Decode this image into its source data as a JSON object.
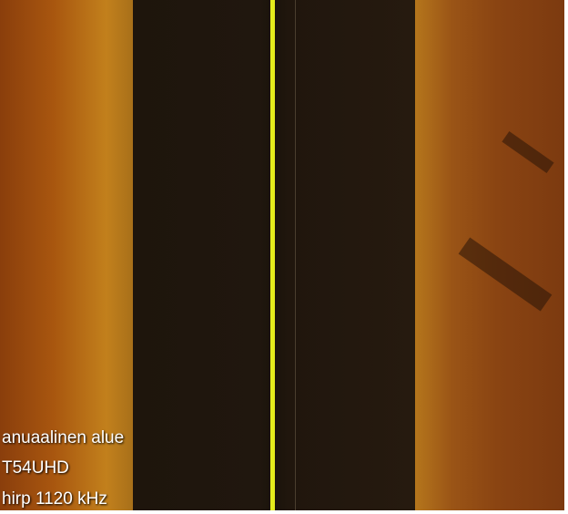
{
  "overlay": {
    "lines": [
      "anuaalinen alue",
      "T54UHD",
      "hirp 1120 kHz"
    ]
  }
}
